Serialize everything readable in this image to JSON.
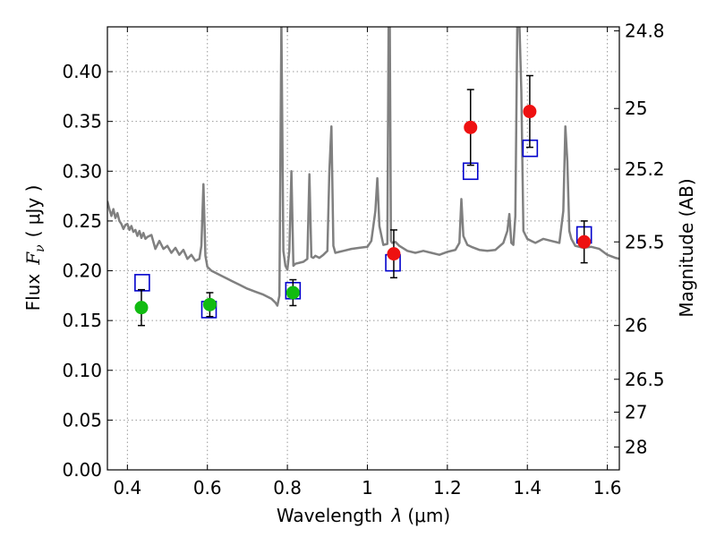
{
  "chart_data": {
    "type": "scatter",
    "xlabel_main": "Wavelength",
    "xlabel_sym": "λ",
    "xlabel_unit": "(μm)",
    "ylabel_main": "Flux",
    "ylabel_sym": "F",
    "ylabel_sub": "ν",
    "ylabel_unit": "( μJy )",
    "ylabel_right": "Magnitude (AB)",
    "xlim": [
      0.35,
      1.63
    ],
    "ylim": [
      0.0,
      0.445
    ],
    "grid": true,
    "x_ticks": [
      0.4,
      0.6,
      0.8,
      1.0,
      1.2,
      1.4,
      1.6
    ],
    "x_tick_labels": [
      "0.4",
      "0.6",
      "0.8",
      "1",
      "1.2",
      "1.4",
      "1.6"
    ],
    "y_ticks": [
      0.0,
      0.05,
      0.1,
      0.15,
      0.2,
      0.25,
      0.3,
      0.35,
      0.4
    ],
    "y_tick_labels": [
      "0.00",
      "0.05",
      "0.10",
      "0.15",
      "0.20",
      "0.25",
      "0.30",
      "0.35",
      "0.40"
    ],
    "mag_ticks": [
      {
        "label": "24.8",
        "flux": 0.441
      },
      {
        "label": "25",
        "flux": 0.363
      },
      {
        "label": "25.2",
        "flux": 0.302
      },
      {
        "label": "25.5",
        "flux": 0.229
      },
      {
        "label": "26",
        "flux": 0.145
      },
      {
        "label": "26.5",
        "flux": 0.091
      },
      {
        "label": "27",
        "flux": 0.058
      },
      {
        "label": "28",
        "flux": 0.023
      }
    ],
    "colors": {
      "spectrum": "#808080",
      "model_box": "#0000cc",
      "obs_green": "#11bb11",
      "obs_red": "#ee1111",
      "errorbar": "#000000",
      "grid": "#999999"
    },
    "series": [
      {
        "marker": "circle",
        "color": "#11bb11",
        "points": [
          {
            "x": 0.435,
            "y": 0.163,
            "err": 0.018
          },
          {
            "x": 0.606,
            "y": 0.166,
            "err": 0.012
          },
          {
            "x": 0.814,
            "y": 0.178,
            "err": 0.013
          }
        ]
      },
      {
        "marker": "circle",
        "color": "#ee1111",
        "points": [
          {
            "x": 1.066,
            "y": 0.217,
            "err": 0.024
          },
          {
            "x": 1.258,
            "y": 0.344,
            "err": 0.038
          },
          {
            "x": 1.406,
            "y": 0.36,
            "err": 0.036
          },
          {
            "x": 1.542,
            "y": 0.229,
            "err": 0.021
          }
        ]
      },
      {
        "marker": "open-square",
        "color": "#0000cc",
        "points": [
          {
            "x": 0.437,
            "y": 0.188
          },
          {
            "x": 0.604,
            "y": 0.161
          },
          {
            "x": 0.814,
            "y": 0.18
          },
          {
            "x": 1.064,
            "y": 0.208
          },
          {
            "x": 1.258,
            "y": 0.3
          },
          {
            "x": 1.407,
            "y": 0.323
          },
          {
            "x": 1.542,
            "y": 0.236
          }
        ]
      }
    ],
    "spectrum": {
      "x": [
        0.35,
        0.355,
        0.36,
        0.365,
        0.37,
        0.375,
        0.38,
        0.385,
        0.39,
        0.395,
        0.4,
        0.405,
        0.41,
        0.415,
        0.42,
        0.425,
        0.43,
        0.435,
        0.44,
        0.445,
        0.45,
        0.46,
        0.47,
        0.48,
        0.49,
        0.5,
        0.51,
        0.52,
        0.53,
        0.54,
        0.55,
        0.56,
        0.57,
        0.58,
        0.585,
        0.59,
        0.595,
        0.6,
        0.61,
        0.62,
        0.64,
        0.66,
        0.68,
        0.7,
        0.72,
        0.74,
        0.76,
        0.77,
        0.775,
        0.78,
        0.785,
        0.79,
        0.795,
        0.8,
        0.805,
        0.81,
        0.815,
        0.82,
        0.83,
        0.84,
        0.85,
        0.855,
        0.86,
        0.865,
        0.87,
        0.88,
        0.89,
        0.9,
        0.905,
        0.91,
        0.915,
        0.92,
        0.94,
        0.96,
        0.98,
        1.0,
        1.01,
        1.02,
        1.025,
        1.03,
        1.04,
        1.05,
        1.053,
        1.056,
        1.059,
        1.062,
        1.07,
        1.08,
        1.1,
        1.12,
        1.14,
        1.16,
        1.18,
        1.2,
        1.22,
        1.23,
        1.235,
        1.24,
        1.25,
        1.26,
        1.28,
        1.3,
        1.32,
        1.34,
        1.35,
        1.355,
        1.36,
        1.365,
        1.37,
        1.375,
        1.38,
        1.385,
        1.39,
        1.395,
        1.4,
        1.41,
        1.42,
        1.44,
        1.46,
        1.48,
        1.49,
        1.495,
        1.5,
        1.505,
        1.51,
        1.52,
        1.54,
        1.56,
        1.58,
        1.6,
        1.62,
        1.63
      ],
      "y": [
        0.27,
        0.262,
        0.255,
        0.262,
        0.253,
        0.258,
        0.25,
        0.247,
        0.242,
        0.246,
        0.247,
        0.241,
        0.245,
        0.239,
        0.241,
        0.235,
        0.24,
        0.233,
        0.238,
        0.232,
        0.234,
        0.236,
        0.222,
        0.23,
        0.222,
        0.225,
        0.218,
        0.223,
        0.216,
        0.221,
        0.212,
        0.216,
        0.21,
        0.212,
        0.225,
        0.287,
        0.215,
        0.204,
        0.2,
        0.198,
        0.194,
        0.19,
        0.186,
        0.182,
        0.179,
        0.176,
        0.172,
        0.168,
        0.165,
        0.175,
        0.45,
        0.22,
        0.205,
        0.201,
        0.22,
        0.3,
        0.205,
        0.207,
        0.208,
        0.209,
        0.212,
        0.297,
        0.214,
        0.213,
        0.215,
        0.213,
        0.216,
        0.22,
        0.3,
        0.345,
        0.225,
        0.218,
        0.22,
        0.222,
        0.223,
        0.224,
        0.23,
        0.26,
        0.293,
        0.245,
        0.226,
        0.227,
        0.45,
        0.45,
        0.23,
        0.228,
        0.229,
        0.225,
        0.22,
        0.218,
        0.22,
        0.218,
        0.216,
        0.219,
        0.221,
        0.228,
        0.272,
        0.235,
        0.226,
        0.224,
        0.221,
        0.22,
        0.221,
        0.228,
        0.24,
        0.257,
        0.228,
        0.226,
        0.255,
        0.45,
        0.45,
        0.38,
        0.24,
        0.236,
        0.232,
        0.23,
        0.228,
        0.232,
        0.23,
        0.228,
        0.26,
        0.345,
        0.31,
        0.24,
        0.232,
        0.225,
        0.223,
        0.224,
        0.222,
        0.216,
        0.213,
        0.212
      ]
    }
  }
}
